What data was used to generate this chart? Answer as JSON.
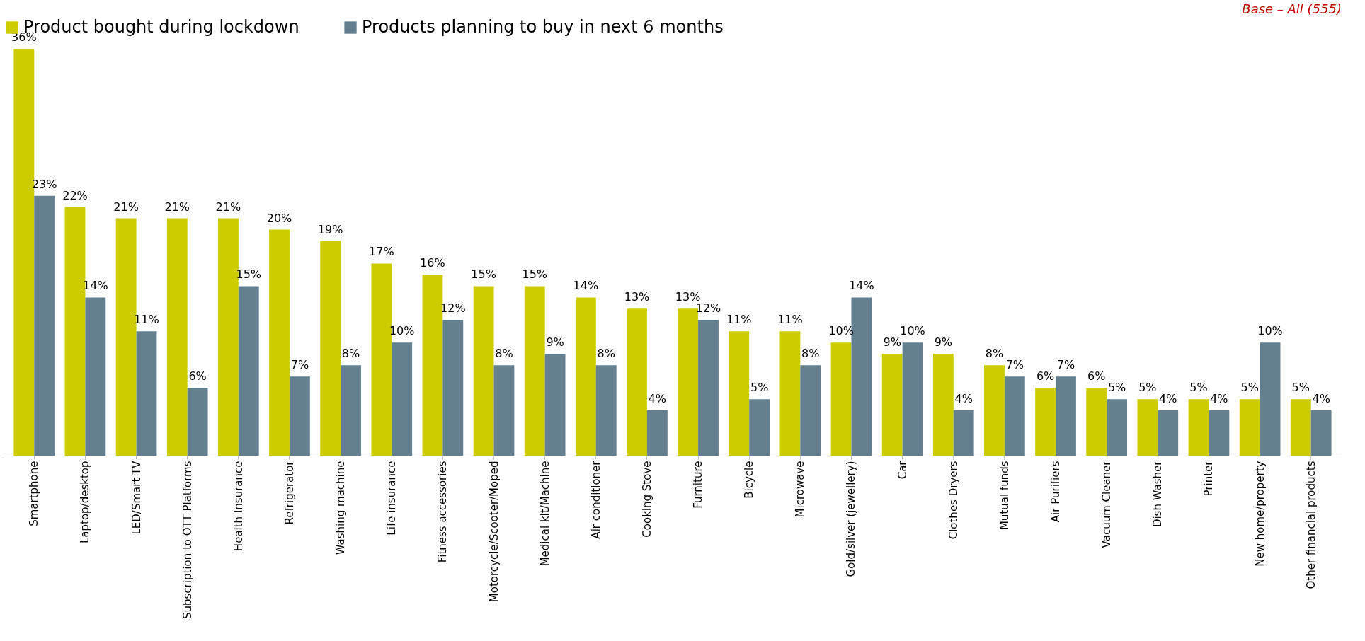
{
  "chart_data": {
    "type": "bar",
    "categories": [
      "Smartphone",
      "Laptop/desktop",
      "LED/Smart TV",
      "Subscription to OTT Platforms",
      "Health Insurance",
      "Refrigerator",
      "Washing machine",
      "Life insurance",
      "Fitness accessories",
      "Motorcycle/Scooter/Moped",
      "Medical kit/Machine",
      "Air conditioner",
      "Cooking Stove",
      "Furniture",
      "Bicycle",
      "Microwave",
      "Gold/silver (jewellery)",
      "Car",
      "Clothes Dryers",
      "Mutual funds",
      "Air Purifiers",
      "Vacuum Cleaner",
      "Dish Washer",
      "Printer",
      "New home/property",
      "Other financial products"
    ],
    "series": [
      {
        "name": "Product bought during lockdown",
        "color": "#cccc00",
        "values": [
          36,
          22,
          21,
          21,
          21,
          20,
          19,
          17,
          16,
          15,
          15,
          14,
          13,
          13,
          11,
          11,
          10,
          9,
          9,
          8,
          6,
          6,
          5,
          5,
          5,
          5
        ],
        "value_labels": [
          "36%",
          "22%",
          "21%",
          "21%",
          "21%",
          "20%",
          "19%",
          "17%",
          "16%",
          "15%",
          "15%",
          "14%",
          "13%",
          "13%",
          "11%",
          "11%",
          "10%",
          "9%",
          "9%",
          "8%",
          "6%",
          "6%",
          "5%",
          "5%",
          "5%",
          "5%"
        ]
      },
      {
        "name": "Products planning to buy in next 6 months",
        "color": "#647f8f",
        "values": [
          23,
          14,
          11,
          6,
          15,
          7,
          8,
          10,
          12,
          8,
          9,
          8,
          4,
          12,
          5,
          8,
          14,
          10,
          4,
          7,
          7,
          5,
          4,
          4,
          10,
          4
        ],
        "value_labels": [
          "23%",
          "14%",
          "11%",
          "6%",
          "15%",
          "7%",
          "8%",
          "10%",
          "12%",
          "8%",
          "9%",
          "8%",
          "4%",
          "12%",
          "5%",
          "8%",
          "14%",
          "10%",
          "4%",
          "7%",
          "7%",
          "5%",
          "4%",
          "4%",
          "10%",
          "4%"
        ]
      }
    ],
    "annotations": [
      "Base – All (555)"
    ],
    "legend": "top",
    "grid": false
  }
}
